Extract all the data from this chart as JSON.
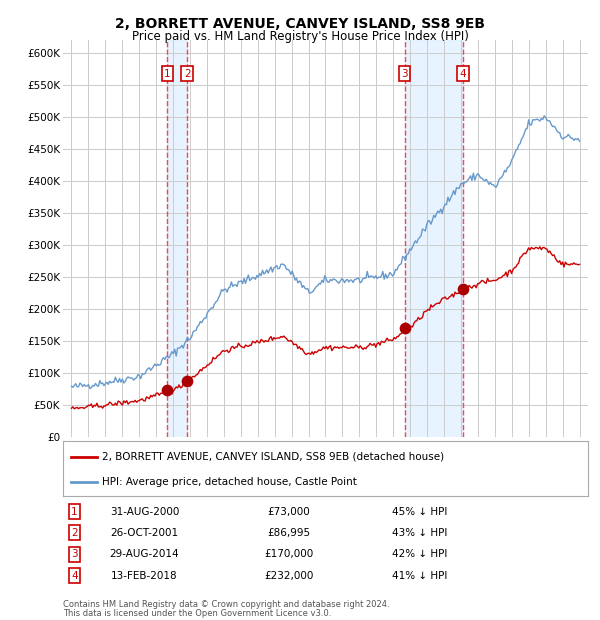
{
  "title": "2, BORRETT AVENUE, CANVEY ISLAND, SS8 9EB",
  "subtitle": "Price paid vs. HM Land Registry's House Price Index (HPI)",
  "legend_house": "2, BORRETT AVENUE, CANVEY ISLAND, SS8 9EB (detached house)",
  "legend_hpi": "HPI: Average price, detached house, Castle Point",
  "footer1": "Contains HM Land Registry data © Crown copyright and database right 2024.",
  "footer2": "This data is licensed under the Open Government Licence v3.0.",
  "sales": [
    {
      "num": 1,
      "date": "31-AUG-2000",
      "price": 73000,
      "pct": "45% ↓ HPI",
      "year_x": 2000.667
    },
    {
      "num": 2,
      "date": "26-OCT-2001",
      "price": 86995,
      "pct": "43% ↓ HPI",
      "year_x": 2001.833
    },
    {
      "num": 3,
      "date": "29-AUG-2014",
      "price": 170000,
      "pct": "42% ↓ HPI",
      "year_x": 2014.667
    },
    {
      "num": 4,
      "date": "13-FEB-2018",
      "price": 232000,
      "pct": "41% ↓ HPI",
      "year_x": 2018.125
    }
  ],
  "ylim": [
    0,
    620000
  ],
  "xlim": [
    1994.5,
    2025.5
  ],
  "yticks": [
    0,
    50000,
    100000,
    150000,
    200000,
    250000,
    300000,
    350000,
    400000,
    450000,
    500000,
    550000,
    600000
  ],
  "ytick_labels": [
    "£0",
    "£50K",
    "£100K",
    "£150K",
    "£200K",
    "£250K",
    "£300K",
    "£350K",
    "£400K",
    "£450K",
    "£500K",
    "£550K",
    "£600K"
  ],
  "house_color": "#cc0000",
  "hpi_color": "#6699cc",
  "shade_color": "#ddeeff",
  "grid_color": "#cccccc",
  "bg_color": "#ffffff",
  "sale_marker_color": "#aa0000",
  "dashed_line_color": "#ff4444",
  "label_box_color": "#cc0000"
}
